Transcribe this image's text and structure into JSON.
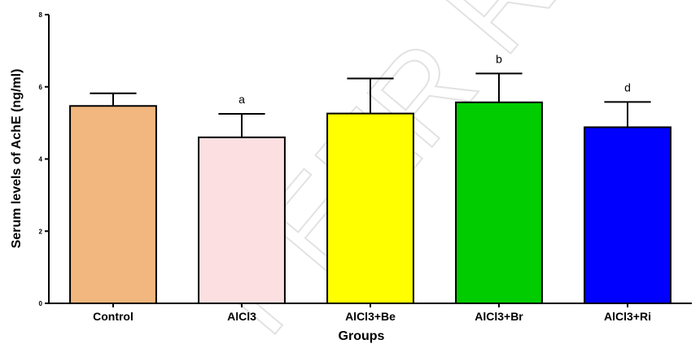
{
  "watermark": "PEER REVIEW",
  "chart_data": {
    "type": "bar",
    "categories": [
      "Control",
      "AlCl3",
      "AlCl3+Be",
      "AlCl3+Br",
      "AlCl3+Ri"
    ],
    "values": [
      5.47,
      4.6,
      5.26,
      5.57,
      4.88
    ],
    "errors": [
      0.35,
      0.65,
      0.97,
      0.8,
      0.7
    ],
    "annotations": [
      "",
      "a",
      "",
      "b",
      "d"
    ],
    "colors": [
      "#f2b77e",
      "#fce0e1",
      "#ffff00",
      "#00cc00",
      "#0000ff"
    ],
    "xlabel": "Groups",
    "ylabel": "Serum levels of AchE (ng/ml)",
    "ylim": [
      0,
      8
    ],
    "yticks": [
      "0",
      "2",
      "4",
      "6",
      "8"
    ],
    "grid": false,
    "legend": "none"
  }
}
